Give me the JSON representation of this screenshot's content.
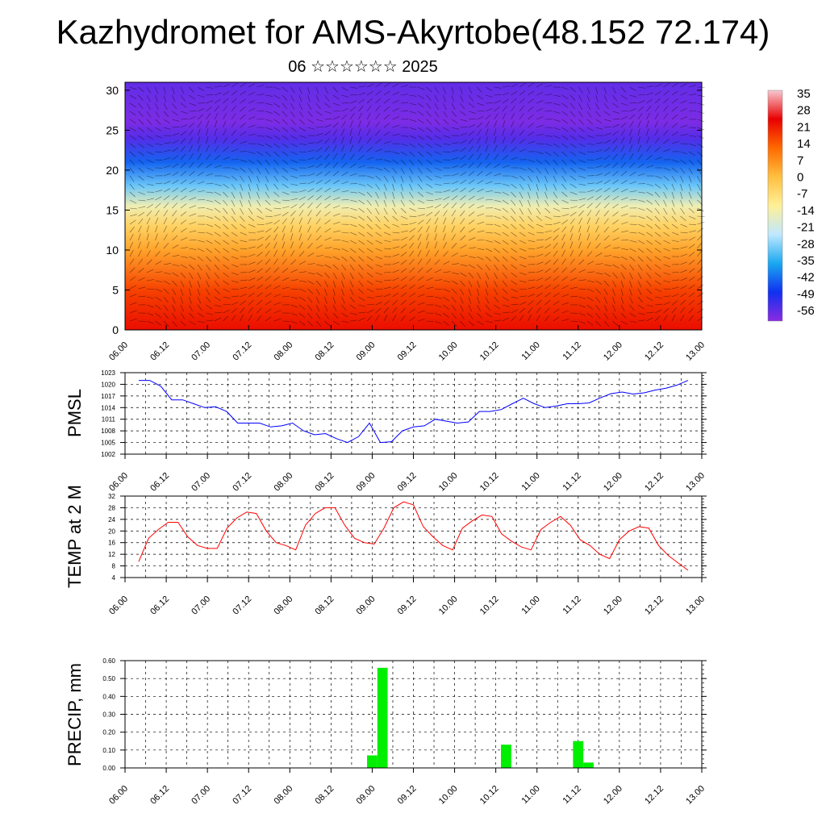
{
  "header": {
    "title": "Kazhydromet for AMS-Akyrtobe(48.152 72.174)",
    "subtitle": "06 ☆☆☆☆☆☆ 2025"
  },
  "colors": {
    "pmsl_line": "#0000ff",
    "temp_line": "#ff0000",
    "precip_bar": "#00ee00",
    "grid": "#000000"
  },
  "chart_data": [
    {
      "type": "heatmap",
      "title": "",
      "variable_colorbar_labels": [
        "35",
        "28",
        "21",
        "14",
        "7",
        "0",
        "-7",
        "-14",
        "-21",
        "-28",
        "-35",
        "-42",
        "-49",
        "-56"
      ],
      "color_stops": [
        {
          "value": 40,
          "color": "#f8c8d0"
        },
        {
          "value": 30,
          "color": "#e80000"
        },
        {
          "value": 14,
          "color": "#ff6a00"
        },
        {
          "value": 5,
          "color": "#ffc040"
        },
        {
          "value": -8,
          "color": "#fff098"
        },
        {
          "value": -16,
          "color": "#bfe8ff"
        },
        {
          "value": -28,
          "color": "#1aa8f0"
        },
        {
          "value": -42,
          "color": "#1030f0"
        },
        {
          "value": -60,
          "color": "#8a2be2"
        }
      ],
      "xticks": [
        "06.00",
        "06.12",
        "07.00",
        "07.12",
        "08.00",
        "08.12",
        "09.00",
        "09.12",
        "10.00",
        "10.12",
        "11.00",
        "11.12",
        "12.00",
        "12.12",
        "13.00"
      ],
      "yticks": [
        "0",
        "5",
        "10",
        "15",
        "20",
        "25",
        "30"
      ],
      "ylim": [
        0,
        31
      ],
      "y_label": "",
      "vertical_profile_temperature": [
        {
          "level": 0,
          "value": 28
        },
        {
          "level": 5,
          "value": 20
        },
        {
          "level": 10,
          "value": 8
        },
        {
          "level": 13,
          "value": 0
        },
        {
          "level": 15.5,
          "value": -10
        },
        {
          "level": 18,
          "value": -22
        },
        {
          "level": 21,
          "value": -36
        },
        {
          "level": 24,
          "value": -52
        },
        {
          "level": 26,
          "value": -58
        },
        {
          "level": 31,
          "value": -54
        }
      ],
      "overlay": "wind barbs"
    },
    {
      "type": "line",
      "ylabel": "PMSL",
      "ylim": [
        1002,
        1023
      ],
      "yticks": [
        "1002",
        "1005",
        "1008",
        "1011",
        "1014",
        "1017",
        "1020",
        "1023"
      ],
      "xticks": [
        "06.00",
        "06.12",
        "07.00",
        "07.12",
        "08.00",
        "08.12",
        "09.00",
        "09.12",
        "10.00",
        "10.12",
        "11.00",
        "11.12",
        "12.00",
        "12.12",
        "13.00"
      ],
      "grid": true,
      "series": [
        {
          "values": [
            1021,
            1021,
            1019.5,
            1016,
            1016,
            1015,
            1014,
            1014.2,
            1013,
            1010,
            1010,
            1010,
            1009,
            1009.3,
            1010,
            1008,
            1007,
            1007.3,
            1006,
            1005,
            1006.5,
            1010,
            1005,
            1005.2,
            1008,
            1009,
            1009.3,
            1011,
            1010.5,
            1010,
            1010.3,
            1013,
            1013,
            1013.5,
            1015,
            1016.4,
            1015,
            1014,
            1014.4,
            1015,
            1015,
            1015.2,
            1016.5,
            1017.6,
            1018,
            1017.5,
            1017.8,
            1018.5,
            1019,
            1019.8,
            1021
          ]
        }
      ]
    },
    {
      "type": "line",
      "ylabel": "TEMP at 2 M",
      "ylim": [
        4,
        32
      ],
      "yticks": [
        "4",
        "8",
        "12",
        "16",
        "20",
        "24",
        "28",
        "32"
      ],
      "xticks": [
        "06.00",
        "06.12",
        "07.00",
        "07.12",
        "08.00",
        "08.12",
        "09.00",
        "09.12",
        "10.00",
        "10.12",
        "11.00",
        "11.12",
        "12.00",
        "12.12",
        "13.00"
      ],
      "grid": true,
      "series": [
        {
          "values": [
            9.5,
            17.5,
            20.5,
            23,
            23,
            18,
            15,
            14,
            14,
            21,
            24.5,
            26.5,
            26,
            20,
            16,
            15,
            13.5,
            22,
            26,
            28,
            28,
            22,
            17.5,
            16,
            15.5,
            21,
            28,
            30,
            29,
            21.5,
            18,
            15,
            13.5,
            21,
            23.5,
            25.5,
            25,
            19,
            16.5,
            14.5,
            13.5,
            20.5,
            23,
            25,
            22,
            17,
            15,
            12,
            10.5,
            17,
            20,
            21.5,
            21,
            15,
            11.5,
            9,
            6.5
          ]
        }
      ]
    },
    {
      "type": "bar",
      "ylabel": "PRECIP, mm",
      "ylim": [
        0,
        0.6
      ],
      "yticks": [
        "0.00",
        "0.10",
        "0.20",
        "0.30",
        "0.40",
        "0.50",
        "0.60"
      ],
      "xticks": [
        "06.00",
        "06.12",
        "07.00",
        "07.12",
        "08.00",
        "08.12",
        "09.00",
        "09.12",
        "10.00",
        "10.12",
        "11.00",
        "11.12",
        "12.00",
        "12.12",
        "13.00"
      ],
      "grid": true,
      "bars": [
        {
          "x_hours": 72,
          "value": 0.07
        },
        {
          "x_hours": 75,
          "value": 0.56
        },
        {
          "x_hours": 111,
          "value": 0.13
        },
        {
          "x_hours": 132,
          "value": 0.15
        },
        {
          "x_hours": 135,
          "value": 0.03
        }
      ]
    }
  ]
}
